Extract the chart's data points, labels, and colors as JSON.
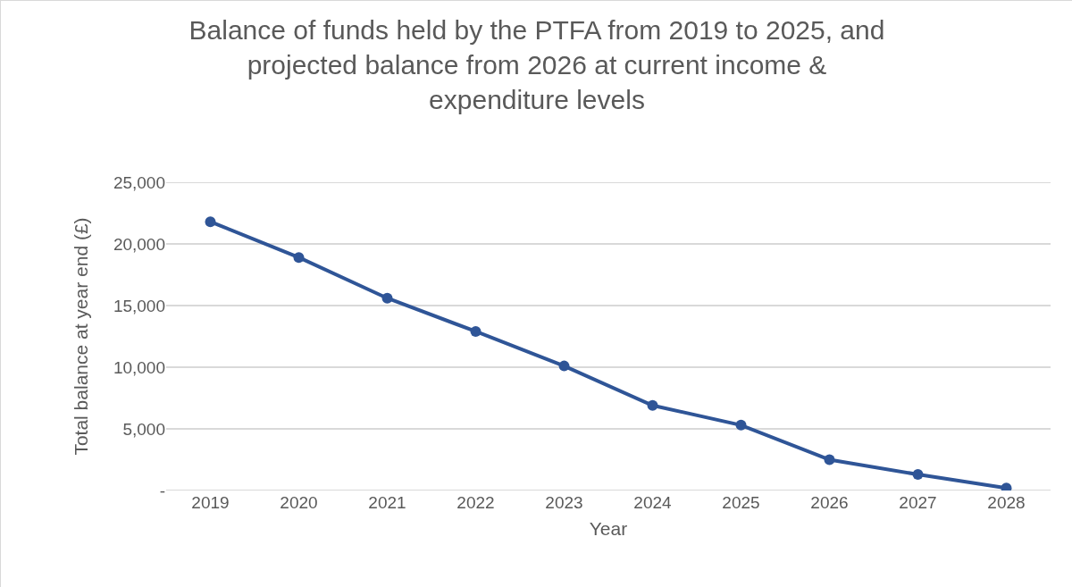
{
  "chart_data": {
    "type": "line",
    "title": "Balance of funds held by the PTFA from 2019 to 2025, and projected balance from 2026 at current income & expenditure levels",
    "xlabel": "Year",
    "ylabel": "Total balance at year end (£)",
    "categories": [
      "2019",
      "2020",
      "2021",
      "2022",
      "2023",
      "2024",
      "2025",
      "2026",
      "2027",
      "2028"
    ],
    "series": [
      {
        "color": "#2f5597",
        "values": [
          21800,
          18900,
          15600,
          12900,
          10100,
          6900,
          5300,
          2500,
          1300,
          200
        ]
      }
    ],
    "ylim": [
      0,
      25000
    ],
    "yticks": [
      {
        "value": 0,
        "label": "-"
      },
      {
        "value": 5000,
        "label": "5,000"
      },
      {
        "value": 10000,
        "label": "10,000"
      },
      {
        "value": 15000,
        "label": "15,000"
      },
      {
        "value": 20000,
        "label": "20,000"
      },
      {
        "value": 25000,
        "label": "25,000"
      }
    ],
    "grid": "y",
    "marker": "circle",
    "line_style": "solid"
  }
}
